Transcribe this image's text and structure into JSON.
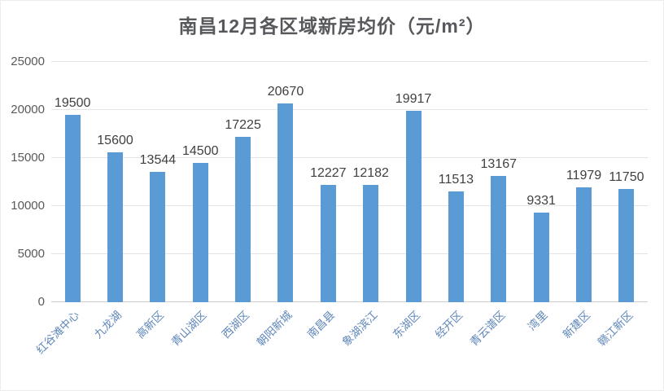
{
  "title": "南昌12月各区域新房均价（元/m²）",
  "colors": {
    "bar": "#5b9bd5",
    "title_text": "#57585c",
    "y_tick_label": "#595959",
    "data_label": "#404040",
    "category_label": "#5e86b8",
    "gridline": "#e4e4e4",
    "axis_line": "#cfcfcf",
    "background": "#ffffff"
  },
  "chart_data": {
    "type": "bar",
    "title": "南昌12月各区域新房均价（元/m²）",
    "categories": [
      "红谷滩中心",
      "九龙湖",
      "高新区",
      "青山湖区",
      "西湖区",
      "朝阳新城",
      "南昌县",
      "象湖滨江",
      "东湖区",
      "经开区",
      "青云谱区",
      "湾里",
      "新建区",
      "赣江新区"
    ],
    "values": [
      19500,
      15600,
      13544,
      14500,
      17225,
      20670,
      12227,
      12182,
      19917,
      11513,
      13167,
      9331,
      11979,
      11750
    ],
    "xlabel": "",
    "ylabel": "",
    "ylim": [
      0,
      25000
    ],
    "yticks": [
      0,
      5000,
      10000,
      15000,
      20000,
      25000
    ],
    "grid": true,
    "data_labels": true,
    "legend": "none",
    "category_label_rotation_deg": 45
  }
}
